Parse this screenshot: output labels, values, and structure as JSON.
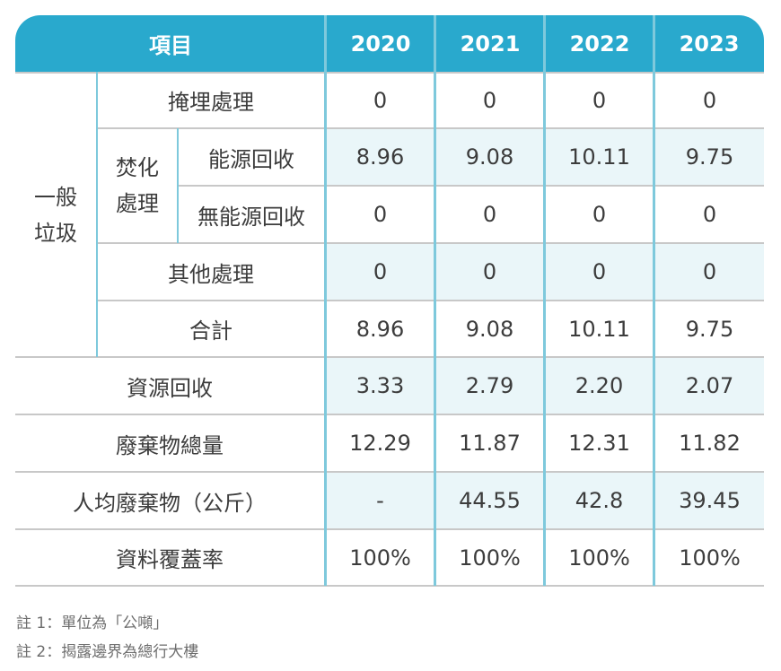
{
  "header": {
    "item": "項目",
    "years": [
      "2020",
      "2021",
      "2022",
      "2023"
    ]
  },
  "general_waste": {
    "label_line1": "一般",
    "label_line2": "垃圾",
    "incineration_line1": "焚化",
    "incineration_line2": "處理"
  },
  "rows": [
    {
      "label": "掩埋處理",
      "values": [
        "0",
        "0",
        "0",
        "0"
      ]
    },
    {
      "label": "能源回收",
      "values": [
        "8.96",
        "9.08",
        "10.11",
        "9.75"
      ]
    },
    {
      "label": "無能源回收",
      "values": [
        "0",
        "0",
        "0",
        "0"
      ]
    },
    {
      "label": "其他處理",
      "values": [
        "0",
        "0",
        "0",
        "0"
      ]
    },
    {
      "label": "合計",
      "values": [
        "8.96",
        "9.08",
        "10.11",
        "9.75"
      ]
    },
    {
      "label": "資源回收",
      "values": [
        "3.33",
        "2.79",
        "2.20",
        "2.07"
      ]
    },
    {
      "label": "廢棄物總量",
      "values": [
        "12.29",
        "11.87",
        "12.31",
        "11.82"
      ]
    },
    {
      "label": "人均廢棄物（公斤）",
      "values": [
        "-",
        "44.55",
        "42.8",
        "39.45"
      ]
    },
    {
      "label": "資料覆蓋率",
      "values": [
        "100%",
        "100%",
        "100%",
        "100%"
      ]
    }
  ],
  "notes": [
    "註 1：單位為「公噸」",
    "註 2：揭露邊界為總行大樓"
  ],
  "colors": {
    "header_bg": "#29a9cd",
    "row_shade": "#eaf6f9",
    "column_divider": "#7ec9dc"
  }
}
